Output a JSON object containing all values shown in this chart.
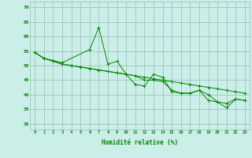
{
  "x": [
    0,
    1,
    2,
    3,
    4,
    5,
    6,
    7,
    8,
    9,
    10,
    11,
    12,
    13,
    14,
    15,
    16,
    17,
    18,
    19,
    20,
    21,
    22,
    23
  ],
  "line1": [
    54.5,
    52.5,
    null,
    51.0,
    null,
    null,
    55.5,
    63.0,
    50.5,
    51.5,
    47.0,
    43.5,
    43.0,
    47.0,
    46.0,
    41.0,
    40.5,
    40.5,
    41.5,
    38.0,
    37.5,
    35.5,
    38.5,
    38.0
  ],
  "line2_x": [
    0,
    1,
    2,
    3,
    4,
    5,
    6,
    7,
    8,
    9,
    10,
    11,
    12,
    13,
    14,
    15,
    16,
    17,
    18,
    19,
    20,
    21,
    22,
    23
  ],
  "line2": [
    54.5,
    52.5,
    51.5,
    50.5,
    50.0,
    49.5,
    49.0,
    48.5,
    48.0,
    47.5,
    47.0,
    46.5,
    46.0,
    45.5,
    45.0,
    44.5,
    44.0,
    43.5,
    43.0,
    42.5,
    42.0,
    41.5,
    41.0,
    40.5
  ],
  "line3": [
    54.5,
    52.5,
    51.5,
    50.5,
    50.0,
    49.5,
    49.0,
    48.5,
    48.0,
    47.5,
    47.0,
    46.5,
    45.0,
    45.0,
    44.5,
    41.5,
    40.5,
    40.5,
    41.5,
    40.0,
    37.5,
    37.0,
    38.5,
    38.0
  ],
  "line_color": "#008800",
  "bg_color": "#cceee8",
  "grid_color": "#99bbbb",
  "xlabel": "Humidité relative (%)",
  "ylim": [
    28,
    72
  ],
  "xlim": [
    -0.5,
    23.5
  ],
  "yticks": [
    30,
    35,
    40,
    45,
    50,
    55,
    60,
    65,
    70
  ],
  "xticks": [
    0,
    1,
    2,
    3,
    4,
    5,
    6,
    7,
    8,
    9,
    10,
    11,
    12,
    13,
    14,
    15,
    16,
    17,
    18,
    19,
    20,
    21,
    22,
    23
  ]
}
